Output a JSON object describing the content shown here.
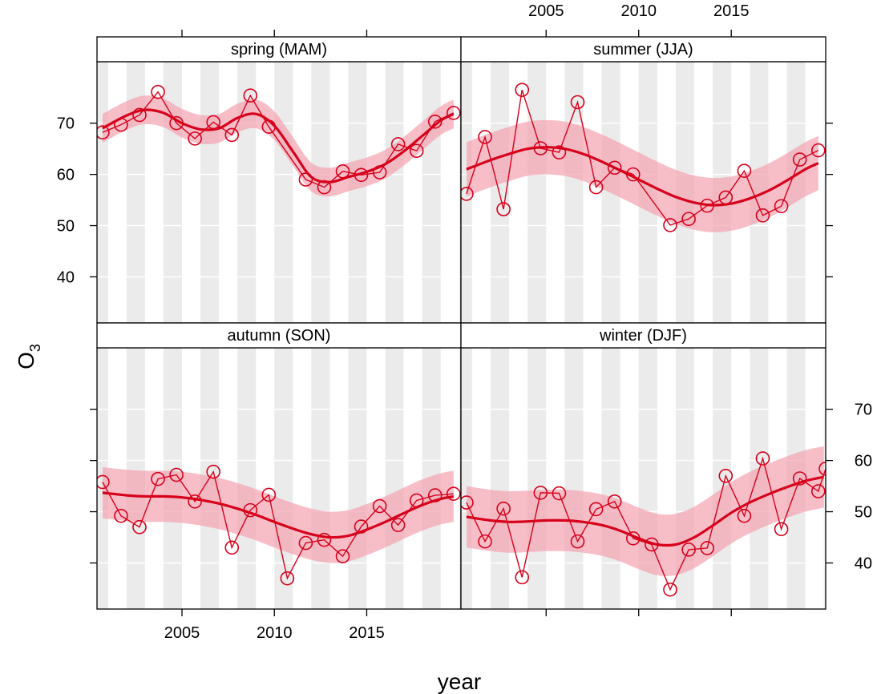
{
  "chart_data": {
    "type": "line",
    "layout": "2x2 trellis panels with shared axes",
    "xlabel": "year",
    "ylabel_main": "O",
    "ylabel_sub": "3",
    "x_range": [
      2000.4,
      2020.1
    ],
    "y_range": [
      31,
      82
    ],
    "x_ticks": [
      2005,
      2010,
      2015
    ],
    "y_ticks": [
      40,
      50,
      60,
      70
    ],
    "background_stripes": "alternating grey/white yearly bands",
    "grid": "horizontal lines at y ticks",
    "colors": {
      "series": "#d7001b",
      "band": "#f4a3b1",
      "stripe": "#ebebeb",
      "grid": "#ffffff",
      "strip_bg": "#ffffff"
    },
    "panels": [
      {
        "name": "spring (MAM)",
        "points": [
          [
            2000.7,
            68.2
          ],
          [
            2001.7,
            69.7
          ],
          [
            2002.7,
            71.6
          ],
          [
            2003.7,
            76.1
          ],
          [
            2004.7,
            70.0
          ],
          [
            2005.7,
            67.0
          ],
          [
            2006.7,
            70.2
          ],
          [
            2007.7,
            67.7
          ],
          [
            2008.7,
            75.4
          ],
          [
            2009.7,
            69.3
          ],
          [
            2011.7,
            59.0
          ],
          [
            2012.7,
            57.5
          ],
          [
            2013.7,
            60.6
          ],
          [
            2014.7,
            59.9
          ],
          [
            2015.7,
            60.4
          ],
          [
            2016.7,
            65.9
          ],
          [
            2017.7,
            64.6
          ],
          [
            2018.7,
            70.3
          ],
          [
            2019.7,
            72.0
          ]
        ],
        "trend": [
          [
            2000.7,
            69.0
          ],
          [
            2002.0,
            71.5
          ],
          [
            2003.0,
            72.6
          ],
          [
            2004.0,
            72.0
          ],
          [
            2005.0,
            70.0
          ],
          [
            2006.0,
            68.8
          ],
          [
            2007.0,
            69.0
          ],
          [
            2008.0,
            71.0
          ],
          [
            2009.0,
            71.8
          ],
          [
            2010.0,
            69.5
          ],
          [
            2011.0,
            64.5
          ],
          [
            2012.0,
            59.5
          ],
          [
            2013.0,
            58.5
          ],
          [
            2014.0,
            59.5
          ],
          [
            2015.0,
            60.5
          ],
          [
            2016.0,
            62.0
          ],
          [
            2017.0,
            64.5
          ],
          [
            2018.0,
            67.5
          ],
          [
            2019.0,
            70.5
          ],
          [
            2019.7,
            71.8
          ]
        ],
        "band_halfwidth": 2.8
      },
      {
        "name": "summer (JJA)",
        "points": [
          [
            2000.7,
            56.2
          ],
          [
            2001.7,
            67.3
          ],
          [
            2002.7,
            53.2
          ],
          [
            2003.7,
            76.5
          ],
          [
            2004.7,
            65.1
          ],
          [
            2005.7,
            64.3
          ],
          [
            2006.7,
            74.1
          ],
          [
            2007.7,
            57.5
          ],
          [
            2008.7,
            61.3
          ],
          [
            2009.7,
            60.0
          ],
          [
            2011.7,
            50.1
          ],
          [
            2012.7,
            51.3
          ],
          [
            2013.7,
            53.9
          ],
          [
            2014.7,
            55.5
          ],
          [
            2015.7,
            60.7
          ],
          [
            2016.7,
            52.0
          ],
          [
            2017.7,
            53.8
          ],
          [
            2018.7,
            62.9
          ],
          [
            2019.7,
            64.7
          ]
        ],
        "trend": [
          [
            2000.7,
            61.0
          ],
          [
            2002.0,
            62.8
          ],
          [
            2003.0,
            64.0
          ],
          [
            2004.0,
            65.0
          ],
          [
            2005.0,
            65.3
          ],
          [
            2006.0,
            65.0
          ],
          [
            2007.0,
            64.0
          ],
          [
            2008.0,
            62.5
          ],
          [
            2009.0,
            60.8
          ],
          [
            2010.0,
            59.0
          ],
          [
            2011.0,
            57.2
          ],
          [
            2012.0,
            55.6
          ],
          [
            2013.0,
            54.5
          ],
          [
            2014.0,
            54.0
          ],
          [
            2015.0,
            54.3
          ],
          [
            2016.0,
            55.3
          ],
          [
            2017.0,
            56.8
          ],
          [
            2018.0,
            58.8
          ],
          [
            2019.0,
            61.0
          ],
          [
            2019.7,
            62.2
          ]
        ],
        "band_halfwidth": 5.3
      },
      {
        "name": "autumn (SON)",
        "points": [
          [
            2000.7,
            55.8
          ],
          [
            2001.7,
            49.2
          ],
          [
            2002.7,
            47.0
          ],
          [
            2003.7,
            56.4
          ],
          [
            2004.7,
            57.2
          ],
          [
            2005.7,
            52.0
          ],
          [
            2006.7,
            57.8
          ],
          [
            2007.7,
            43.0
          ],
          [
            2008.7,
            50.3
          ],
          [
            2009.7,
            53.3
          ],
          [
            2010.7,
            37.0
          ],
          [
            2011.7,
            43.9
          ],
          [
            2012.7,
            44.5
          ],
          [
            2013.7,
            41.3
          ],
          [
            2014.7,
            47.1
          ],
          [
            2015.7,
            51.1
          ],
          [
            2016.7,
            47.4
          ],
          [
            2017.7,
            52.2
          ],
          [
            2018.7,
            53.2
          ],
          [
            2019.7,
            53.5
          ]
        ],
        "trend": [
          [
            2000.7,
            53.7
          ],
          [
            2002.0,
            53.2
          ],
          [
            2003.0,
            53.0
          ],
          [
            2004.0,
            53.0
          ],
          [
            2005.0,
            52.8
          ],
          [
            2006.0,
            52.3
          ],
          [
            2007.0,
            51.6
          ],
          [
            2008.0,
            50.6
          ],
          [
            2009.0,
            49.4
          ],
          [
            2010.0,
            48.0
          ],
          [
            2011.0,
            46.7
          ],
          [
            2012.0,
            45.6
          ],
          [
            2013.0,
            45.0
          ],
          [
            2014.0,
            45.3
          ],
          [
            2015.0,
            46.5
          ],
          [
            2016.0,
            48.0
          ],
          [
            2017.0,
            49.7
          ],
          [
            2018.0,
            51.3
          ],
          [
            2019.0,
            52.5
          ],
          [
            2019.7,
            53.0
          ]
        ],
        "band_halfwidth": 5.0
      },
      {
        "name": "winter (DJF)",
        "points": [
          [
            2000.7,
            51.8
          ],
          [
            2001.7,
            44.2
          ],
          [
            2002.7,
            50.6
          ],
          [
            2003.7,
            37.2
          ],
          [
            2004.7,
            53.7
          ],
          [
            2005.7,
            53.6
          ],
          [
            2006.7,
            44.2
          ],
          [
            2007.7,
            50.5
          ],
          [
            2008.7,
            52.0
          ],
          [
            2009.7,
            44.8
          ],
          [
            2010.7,
            43.6
          ],
          [
            2011.7,
            34.8
          ],
          [
            2012.7,
            42.6
          ],
          [
            2013.7,
            42.9
          ],
          [
            2014.7,
            57.0
          ],
          [
            2015.7,
            49.2
          ],
          [
            2016.7,
            60.4
          ],
          [
            2017.7,
            46.6
          ],
          [
            2018.7,
            56.5
          ],
          [
            2019.7,
            54.0
          ],
          [
            2020.1,
            58.4
          ]
        ],
        "trend": [
          [
            2000.7,
            49.0
          ],
          [
            2002.0,
            48.3
          ],
          [
            2003.0,
            48.0
          ],
          [
            2004.0,
            48.1
          ],
          [
            2005.0,
            48.3
          ],
          [
            2006.0,
            48.3
          ],
          [
            2007.0,
            48.0
          ],
          [
            2008.0,
            47.4
          ],
          [
            2009.0,
            46.3
          ],
          [
            2010.0,
            44.8
          ],
          [
            2011.0,
            43.6
          ],
          [
            2012.0,
            43.6
          ],
          [
            2013.0,
            45.0
          ],
          [
            2014.0,
            47.3
          ],
          [
            2015.0,
            49.8
          ],
          [
            2016.0,
            51.8
          ],
          [
            2017.0,
            53.4
          ],
          [
            2018.0,
            54.8
          ],
          [
            2019.0,
            56.0
          ],
          [
            2020.0,
            56.8
          ]
        ],
        "band_halfwidth": 6.0
      }
    ]
  }
}
